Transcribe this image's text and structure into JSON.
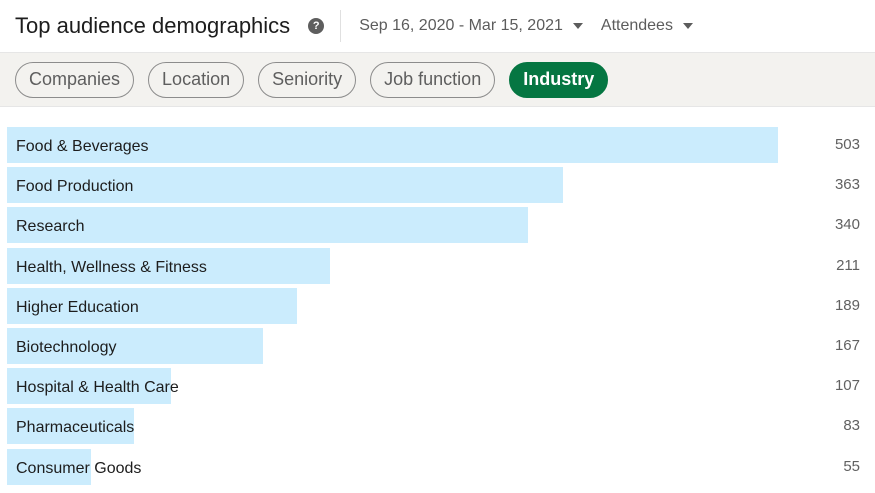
{
  "header": {
    "title": "Top audience demographics",
    "help_icon": "?",
    "date_range": "Sep 16, 2020 - Mar 15, 2021",
    "audience_filter": "Attendees"
  },
  "tabs": [
    {
      "label": "Companies",
      "active": false
    },
    {
      "label": "Location",
      "active": false
    },
    {
      "label": "Seniority",
      "active": false
    },
    {
      "label": "Job function",
      "active": false
    },
    {
      "label": "Industry",
      "active": true
    }
  ],
  "colors": {
    "bar": "#cbecfd",
    "active_tab": "#057642"
  },
  "chart_data": {
    "type": "bar",
    "orientation": "horizontal",
    "categories": [
      "Food & Beverages",
      "Food Production",
      "Research",
      "Health, Wellness & Fitness",
      "Higher Education",
      "Biotechnology",
      "Hospital & Health Care",
      "Pharmaceuticals",
      "Consumer Goods"
    ],
    "values": [
      503,
      363,
      340,
      211,
      189,
      167,
      107,
      83,
      55
    ],
    "value_labels": [
      "503",
      "363",
      "340",
      "211",
      "189",
      "167",
      "107",
      "83",
      "55"
    ],
    "xlim": [
      0,
      503
    ]
  }
}
